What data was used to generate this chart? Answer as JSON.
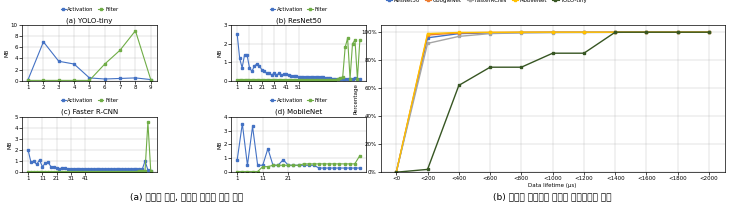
{
  "yolo_activation": [
    0.2,
    7.0,
    3.5,
    3.0,
    0.5,
    0.3,
    0.4,
    0.5,
    0.2
  ],
  "yolo_filter": [
    0.05,
    0.05,
    0.05,
    0.05,
    0.05,
    3.0,
    5.5,
    9.0,
    0.2
  ],
  "yolo_x": [
    1,
    2,
    3,
    4,
    5,
    6,
    7,
    8,
    9
  ],
  "yolo_ylim": [
    0,
    10
  ],
  "yolo_yticks": [
    0,
    2,
    4,
    6,
    8,
    10
  ],
  "resnet_activation": [
    2.5,
    1.2,
    0.7,
    1.4,
    1.4,
    0.7,
    0.5,
    0.8,
    0.9,
    0.8,
    0.6,
    0.5,
    0.4,
    0.4,
    0.3,
    0.4,
    0.3,
    0.4,
    0.3,
    0.35,
    0.35,
    0.3,
    0.25,
    0.25,
    0.25,
    0.2,
    0.2,
    0.2,
    0.2,
    0.2,
    0.2,
    0.2,
    0.2,
    0.2,
    0.2,
    0.2,
    0.15,
    0.15,
    0.15,
    0.1,
    0.1,
    0.1,
    0.1,
    0.1,
    0.1,
    0.1,
    0.1,
    0.1,
    0.15,
    0.1,
    0.1
  ],
  "resnet_filter": [
    0.05,
    0.05,
    0.05,
    0.05,
    0.05,
    0.05,
    0.05,
    0.05,
    0.05,
    0.05,
    0.05,
    0.05,
    0.05,
    0.05,
    0.05,
    0.05,
    0.05,
    0.05,
    0.05,
    0.05,
    0.05,
    0.05,
    0.05,
    0.05,
    0.05,
    0.05,
    0.05,
    0.05,
    0.05,
    0.05,
    0.05,
    0.05,
    0.05,
    0.05,
    0.05,
    0.05,
    0.05,
    0.05,
    0.05,
    0.05,
    0.05,
    0.1,
    0.15,
    0.2,
    1.8,
    2.3,
    0.1,
    2.0,
    2.2,
    0.1,
    2.2
  ],
  "resnet_x": [
    1,
    3,
    5,
    7,
    9,
    11,
    13,
    15,
    17,
    19,
    21,
    23,
    25,
    27,
    29,
    31,
    33,
    35,
    37,
    39,
    41,
    43,
    45,
    47,
    49,
    51,
    53,
    55,
    57,
    59,
    61,
    63,
    65,
    67,
    69,
    71,
    73,
    75,
    77,
    79,
    81,
    83,
    85,
    87,
    89,
    91,
    93,
    95,
    97,
    99,
    101
  ],
  "resnet_xticks": [
    1,
    11,
    21,
    31,
    41,
    51
  ],
  "resnet_ylim": [
    0,
    3
  ],
  "resnet_yticks": [
    0,
    1,
    2,
    3
  ],
  "fasterrcnn_activation": [
    2.0,
    0.9,
    1.0,
    0.7,
    1.1,
    0.5,
    0.8,
    0.9,
    0.5,
    0.5,
    0.4,
    0.3,
    0.4,
    0.35,
    0.3,
    0.3,
    0.3,
    0.3,
    0.3,
    0.3,
    0.3,
    0.25,
    0.25,
    0.25,
    0.25,
    0.25,
    0.25,
    0.25,
    0.25,
    0.25,
    0.25,
    0.25,
    0.25,
    0.25,
    0.25,
    0.25,
    0.25,
    0.25,
    0.25,
    0.25,
    0.25,
    1.0,
    0.2,
    0.15
  ],
  "fasterrcnn_filter": [
    0.05,
    0.05,
    0.05,
    0.05,
    0.05,
    0.05,
    0.05,
    0.05,
    0.05,
    0.05,
    0.05,
    0.05,
    0.05,
    0.05,
    0.05,
    0.05,
    0.05,
    0.05,
    0.05,
    0.05,
    0.05,
    0.05,
    0.05,
    0.05,
    0.05,
    0.05,
    0.05,
    0.05,
    0.05,
    0.05,
    0.05,
    0.05,
    0.05,
    0.05,
    0.05,
    0.05,
    0.05,
    0.05,
    0.05,
    0.15,
    0.15,
    0.15,
    4.5,
    0.1
  ],
  "fasterrcnn_x": [
    1,
    3,
    5,
    7,
    9,
    11,
    13,
    15,
    17,
    19,
    21,
    23,
    25,
    27,
    29,
    31,
    33,
    35,
    37,
    39,
    41,
    43,
    45,
    47,
    49,
    51,
    53,
    55,
    57,
    59,
    61,
    63,
    65,
    67,
    69,
    71,
    73,
    75,
    77,
    79,
    81,
    83,
    85,
    87
  ],
  "fasterrcnn_xticks": [
    1,
    11,
    21,
    31,
    41
  ],
  "fasterrcnn_ylim": [
    0,
    5
  ],
  "fasterrcnn_yticks": [
    0,
    1,
    2,
    3,
    4,
    5
  ],
  "mobilenet_activation": [
    0.9,
    3.5,
    0.5,
    3.3,
    0.5,
    0.5,
    1.7,
    0.5,
    0.5,
    0.9,
    0.5,
    0.5,
    0.5,
    0.5,
    0.5,
    0.5,
    0.3,
    0.3,
    0.3,
    0.3,
    0.3,
    0.3,
    0.3,
    0.3,
    0.3
  ],
  "mobilenet_filter": [
    0.05,
    0.05,
    0.05,
    0.05,
    0.05,
    0.4,
    0.4,
    0.5,
    0.5,
    0.5,
    0.5,
    0.5,
    0.5,
    0.6,
    0.6,
    0.6,
    0.6,
    0.6,
    0.6,
    0.6,
    0.6,
    0.6,
    0.6,
    0.6,
    1.2
  ],
  "mobilenet_x": [
    1,
    3,
    5,
    7,
    9,
    11,
    13,
    15,
    17,
    19,
    21,
    23,
    25,
    27,
    29,
    31,
    33,
    35,
    37,
    39,
    41,
    43,
    45,
    47,
    49
  ],
  "mobilenet_xticks": [
    1,
    11,
    21
  ],
  "mobilenet_ylim": [
    0,
    4
  ],
  "mobilenet_yticks": [
    0,
    1,
    2,
    3,
    4
  ],
  "cdf_x": [
    "<0",
    "<200",
    "<400",
    "<600",
    "<800",
    "<1000",
    "<1200",
    "<1400",
    "<1600",
    "<1800",
    "<2000"
  ],
  "cdf_resnet50": [
    0,
    96,
    99,
    99.5,
    99.8,
    99.9,
    99.9,
    99.9,
    100,
    100,
    100
  ],
  "cdf_googlenet": [
    0,
    98,
    99.5,
    99.8,
    99.9,
    100,
    100,
    100,
    100,
    100,
    100
  ],
  "cdf_fasterrcnn": [
    0,
    92,
    97,
    99,
    99.5,
    99.7,
    99.8,
    99.9,
    100,
    100,
    100
  ],
  "cdf_mobilenet": [
    0,
    99,
    99.8,
    99.9,
    100,
    100,
    100,
    100,
    100,
    100,
    100
  ],
  "cdf_yolotiny": [
    0,
    2,
    62,
    75,
    75,
    85,
    85,
    100,
    100,
    100,
    100
  ],
  "activation_color": "#4472C4",
  "filter_color": "#70AD47",
  "resnet50_color": "#4472C4",
  "googlenet_color": "#ED7D31",
  "fasterrcnn_color": "#A5A5A5",
  "mobilenet_color": "#FFC000",
  "yolotiny_color": "#375623",
  "label_activation": "Activation",
  "label_filter": "Filter",
  "label_resnet50": "ResNet50",
  "label_googlenet": "GoogleNet",
  "label_fasterrcnn": "FasterRCNN",
  "label_mobilenet": "MobileNet",
  "label_yolotiny": "YOLO-tiny",
  "caption_a": "(a) 모델별 필터, 활성화 데이터 크기 분포",
  "caption_b": "(b) 활성화 데이터의 데이터 라이프타임 분포",
  "sub_a_title": "(a) YOLO-tiny",
  "sub_b_title": "(b) ResNet50",
  "sub_c_title": "(c) Faster R-CNN",
  "sub_d_title": "(d) MobileNet",
  "ylabel_mb": "MB",
  "xlabel_lifetime": "Data lifetime (μs)",
  "ylabel_percentage": "Percentage"
}
